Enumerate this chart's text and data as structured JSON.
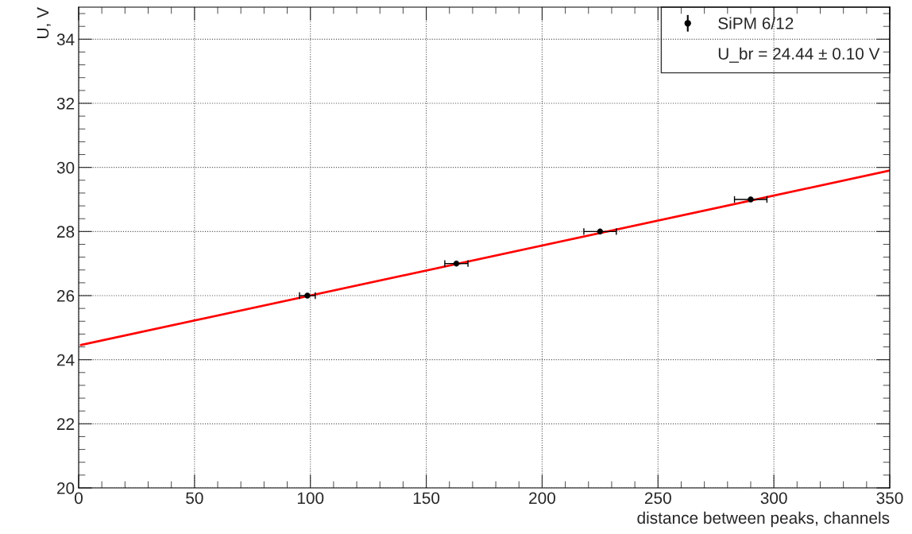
{
  "chart_data": {
    "type": "scatter",
    "xlabel": "distance between peaks, channels",
    "ylabel": "U, V",
    "series": [
      {
        "name": "SiPM 6/12",
        "color": "#000000",
        "marker": "circle",
        "x": [
          98.7,
          163,
          225,
          290
        ],
        "values": [
          26,
          27,
          28,
          29
        ],
        "xerrors": [
          3.4,
          5,
          7,
          7
        ]
      },
      {
        "type": "line",
        "color": "#ff0000",
        "marker": "none",
        "x": [
          1,
          350
        ],
        "values": [
          24.46,
          29.9
        ]
      }
    ],
    "annotations": [
      "U_br = 24.44 ± 0.10 V"
    ],
    "xlim": [
      0,
      350
    ],
    "xticks": [
      0,
      50,
      100,
      150,
      200,
      250,
      300,
      350
    ],
    "ylim": [
      20,
      35
    ],
    "yticks": [
      20,
      22,
      24,
      26,
      28,
      30,
      32,
      34
    ],
    "grid": true,
    "legend": "top right"
  }
}
